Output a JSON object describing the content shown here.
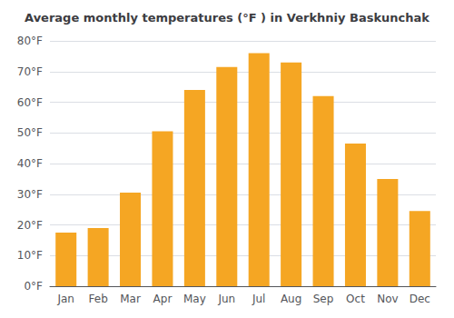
{
  "chart_data": {
    "type": "bar",
    "title": "Average monthly temperatures (°F ) in Verkhniy Baskunchak",
    "categories": [
      "Jan",
      "Feb",
      "Mar",
      "Apr",
      "May",
      "Jun",
      "Jul",
      "Aug",
      "Sep",
      "Oct",
      "Nov",
      "Dec"
    ],
    "values": [
      17.5,
      19.0,
      30.5,
      50.5,
      64.0,
      71.5,
      76.0,
      73.0,
      62.0,
      46.5,
      35.0,
      24.5
    ],
    "color": "#F5A623",
    "ylim": [
      0,
      80
    ],
    "yticks": [
      {
        "value": 0,
        "label": "0°F"
      },
      {
        "value": 10,
        "label": "10°F"
      },
      {
        "value": 20,
        "label": "20°F"
      },
      {
        "value": 30,
        "label": "30°F"
      },
      {
        "value": 40,
        "label": "40°F"
      },
      {
        "value": 50,
        "label": "50°F"
      },
      {
        "value": 60,
        "label": "60°F"
      },
      {
        "value": 70,
        "label": "70°F"
      },
      {
        "value": 80,
        "label": "80°F"
      }
    ],
    "grid": true
  }
}
